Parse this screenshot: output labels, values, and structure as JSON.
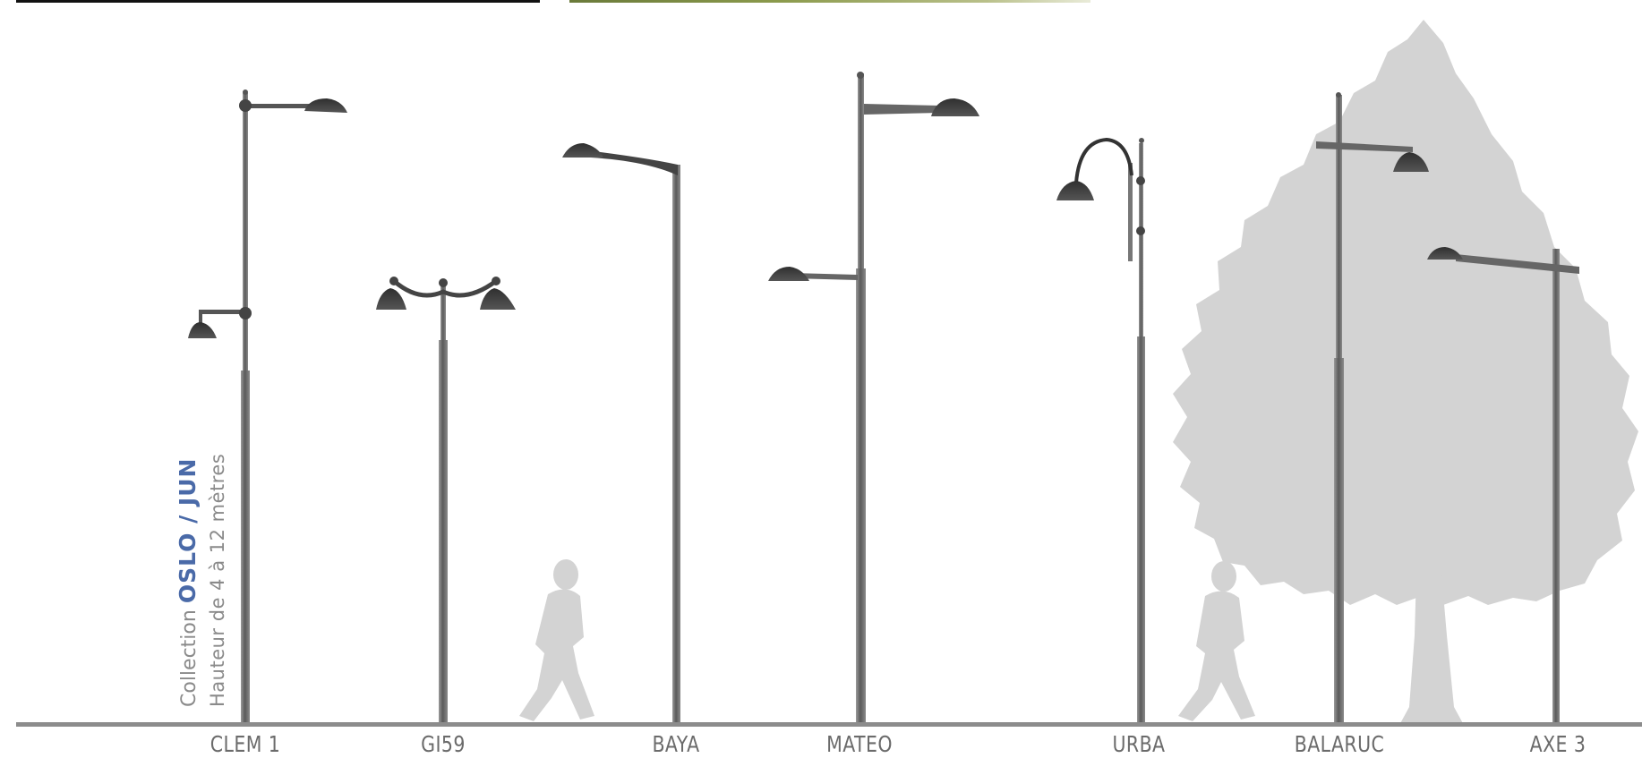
{
  "caption": {
    "prefix": "Collection",
    "brand": "OSLO / JUN",
    "subtitle": "Hauteur de 4 à 12 mètres"
  },
  "models": [
    {
      "key": "clem1",
      "label": "CLEM 1"
    },
    {
      "key": "gi59",
      "label": "GI59"
    },
    {
      "key": "baya",
      "label": "BAYA"
    },
    {
      "key": "mateo",
      "label": "MATEO"
    },
    {
      "key": "urba",
      "label": "URBA"
    },
    {
      "key": "balaruc",
      "label": "BALARUC"
    },
    {
      "key": "axe3",
      "label": "AXE 3"
    }
  ],
  "colors": {
    "accent": "#4a6aa8",
    "pole": "#707070",
    "lantern": "#3a3a3a",
    "silhouette": "#d3d3d3",
    "ground": "#8c8c8c",
    "label": "#6b6b6b"
  }
}
